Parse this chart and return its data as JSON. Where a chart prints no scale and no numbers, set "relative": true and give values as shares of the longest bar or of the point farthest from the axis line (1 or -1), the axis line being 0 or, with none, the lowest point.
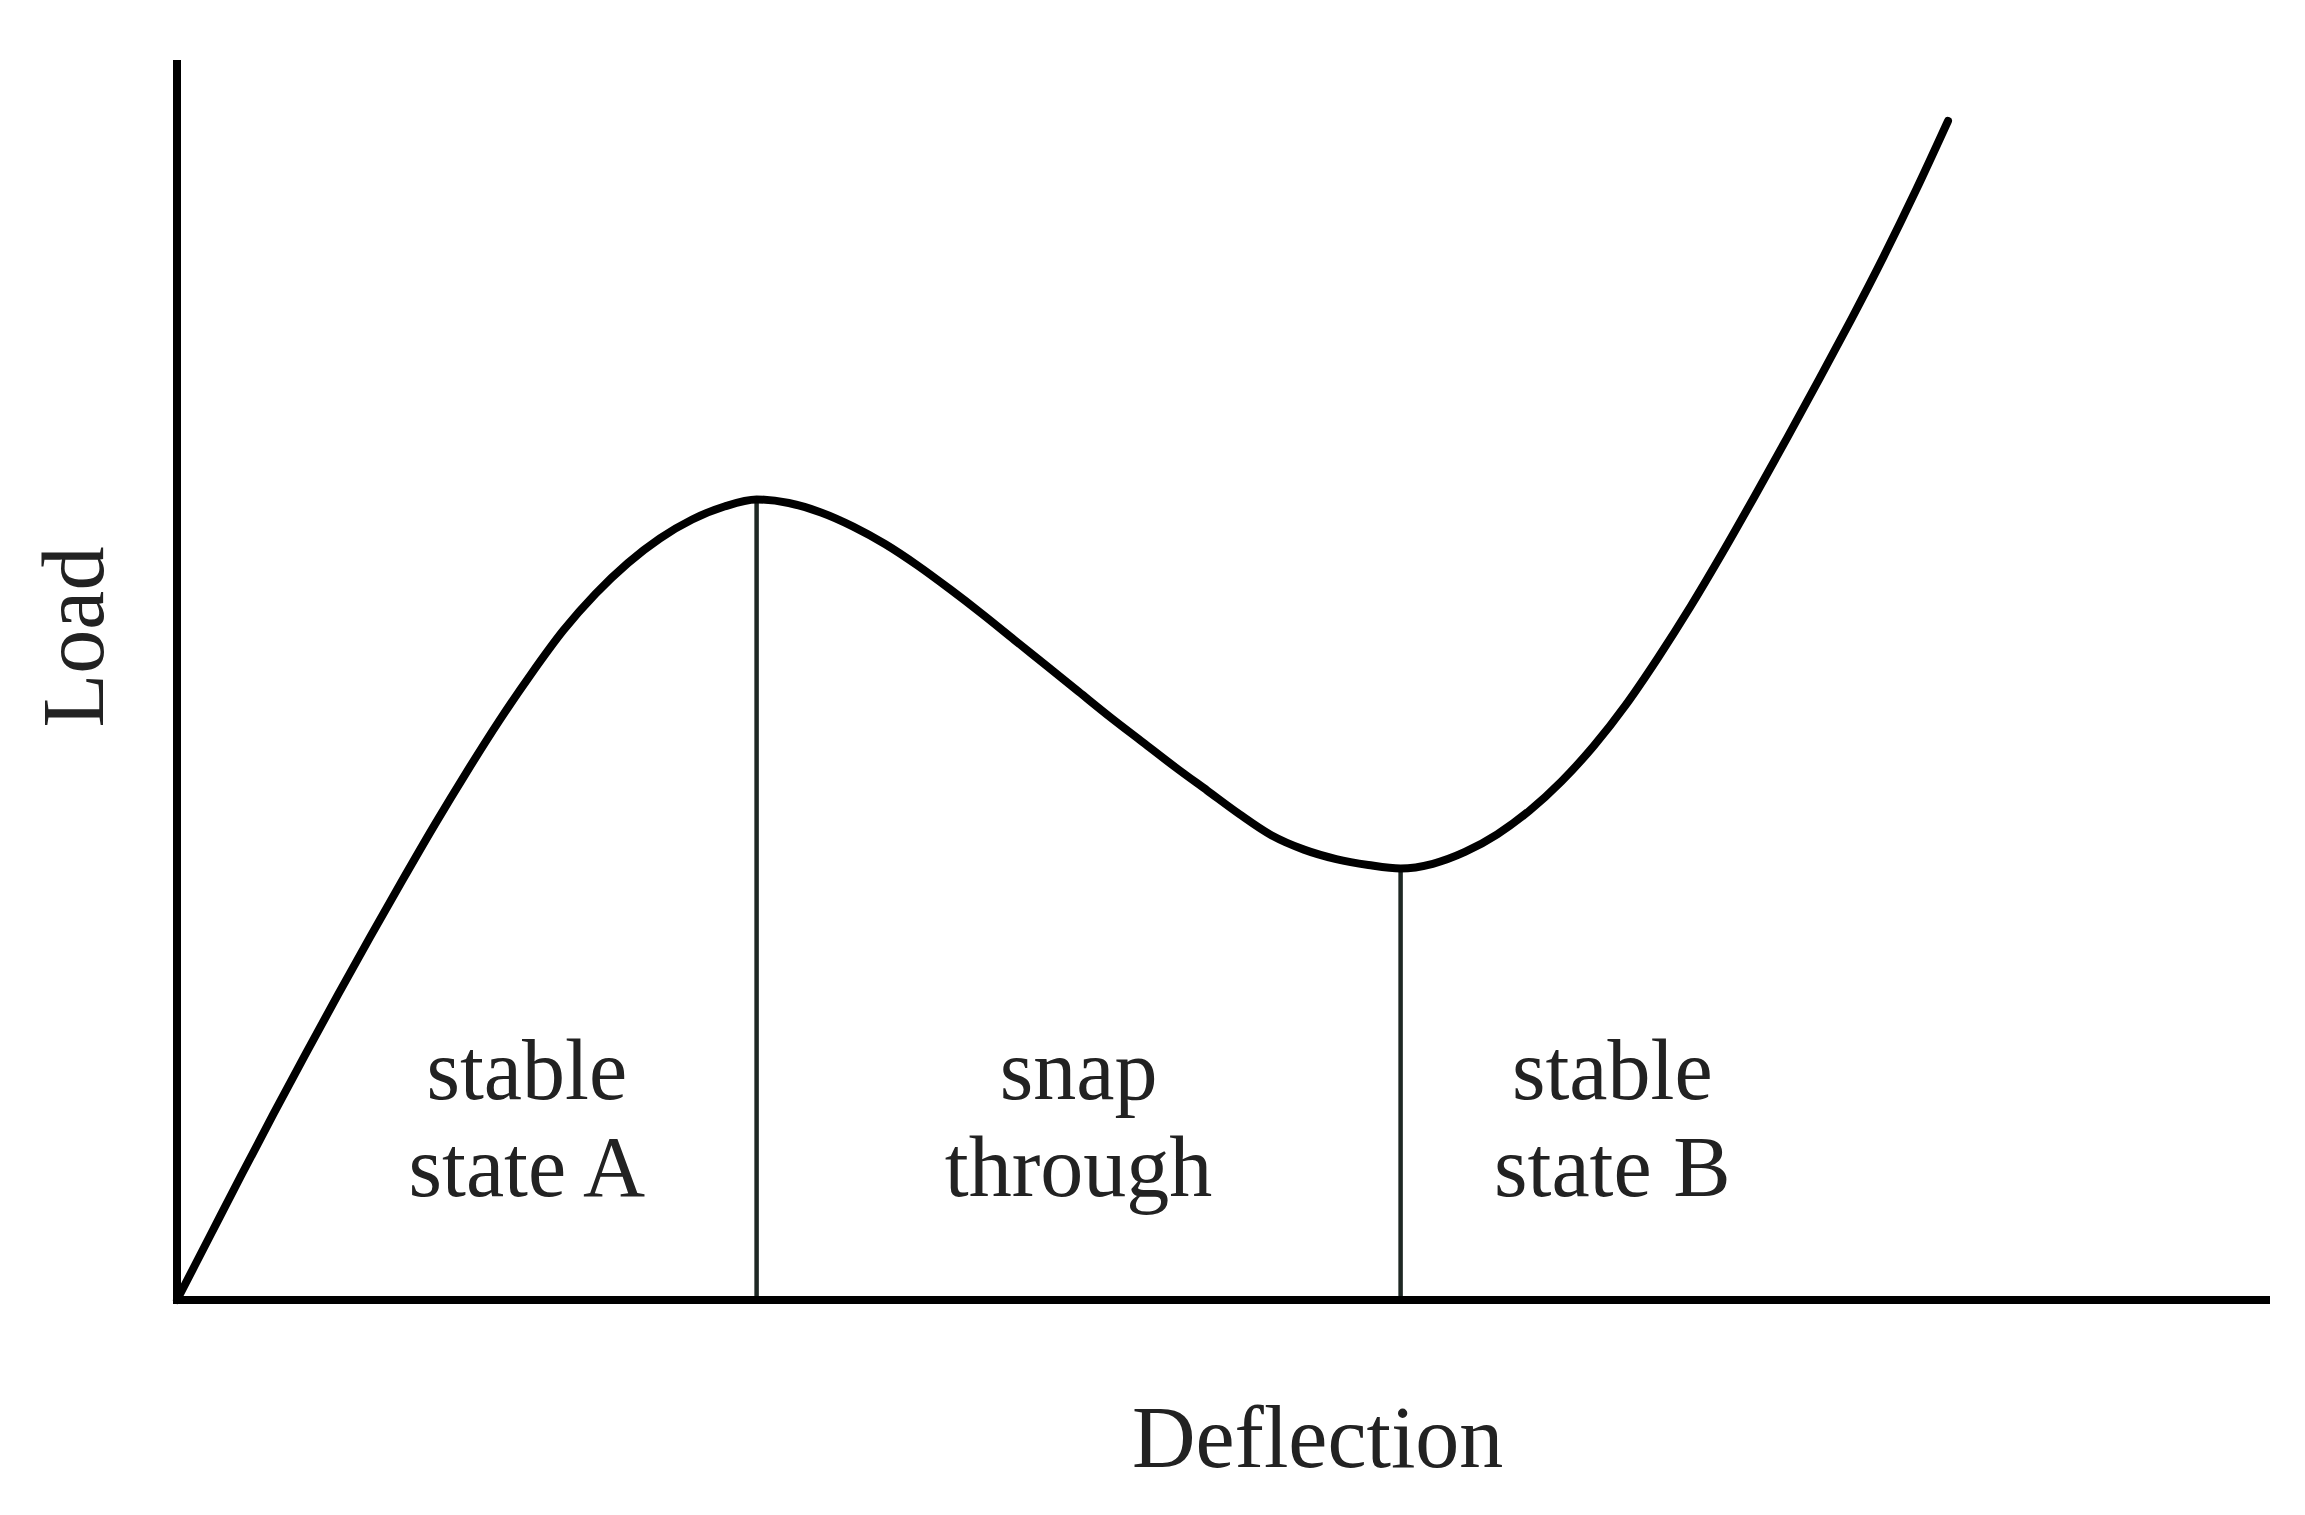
{
  "chart_data": {
    "type": "line",
    "xlabel": "Deflection",
    "ylabel": "Load",
    "relative": true,
    "categories": [
      null,
      null,
      null,
      null,
      null,
      null,
      null,
      null,
      null,
      null,
      null,
      null,
      null,
      null,
      null,
      null,
      null,
      null,
      null,
      null,
      null,
      null,
      null,
      null,
      null,
      null,
      null,
      null,
      null,
      null,
      null,
      null,
      null,
      null,
      null,
      null,
      null,
      null,
      null,
      null,
      null,
      null,
      null,
      null,
      null,
      null,
      null,
      null,
      null,
      null,
      null,
      null,
      null,
      null,
      null,
      null,
      null,
      null,
      null,
      null,
      null,
      null,
      null,
      null,
      null,
      null
    ],
    "series": [
      {
        "color": "#000000",
        "values": [
          0,
          0.053,
          0.106,
          0.158,
          0.209,
          0.259,
          0.308,
          0.356,
          0.403,
          0.448,
          0.491,
          0.531,
          0.568,
          0.599,
          0.625,
          0.646,
          0.662,
          0.673,
          0.679,
          0.676,
          0.668,
          0.656,
          0.641,
          0.623,
          0.603,
          0.582,
          0.56,
          0.538,
          0.516,
          0.494,
          0.473,
          0.452,
          0.432,
          0.412,
          0.394,
          0.382,
          0.374,
          0.369,
          0.366,
          0.37,
          0.38,
          0.395,
          0.415,
          0.44,
          0.47,
          0.505,
          0.545,
          0.588,
          0.634,
          0.682,
          0.731,
          0.781,
          0.832,
          0.885,
          0.941,
          1,
          null,
          null,
          null,
          null,
          null,
          null,
          null,
          null,
          null,
          null
        ]
      }
    ],
    "annotations": [
      "stable\nstate A",
      "snap\nthrough",
      "stable\nstate B"
    ]
  }
}
